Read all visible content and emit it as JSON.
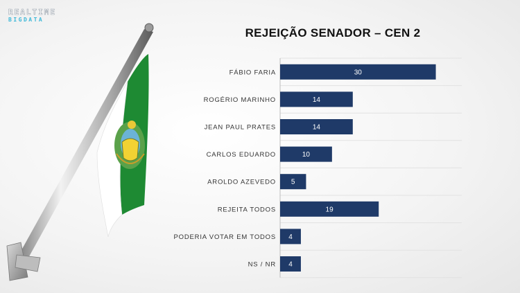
{
  "logo": {
    "line1": "REALTIME",
    "line2": "BIGDATA"
  },
  "colors": {
    "bar": "#1f3a68",
    "grid": "#e2e2e2",
    "axis": "#bdbdbd"
  },
  "chart_data": {
    "type": "bar",
    "orientation": "horizontal",
    "title": "REJEIÇÃO SENADOR – CEN 2",
    "categories": [
      "FÁBIO FARIA",
      "ROGÉRIO MARINHO",
      "JEAN PAUL PRATES",
      "CARLOS EDUARDO",
      "AROLDO AZEVEDO",
      "REJEITA TODOS",
      "PODERIA VOTAR EM TODOS",
      "NS / NR"
    ],
    "values": [
      30,
      14,
      14,
      10,
      5,
      19,
      4,
      4
    ],
    "xlim": [
      0,
      35
    ],
    "grid": true,
    "legend": false
  }
}
